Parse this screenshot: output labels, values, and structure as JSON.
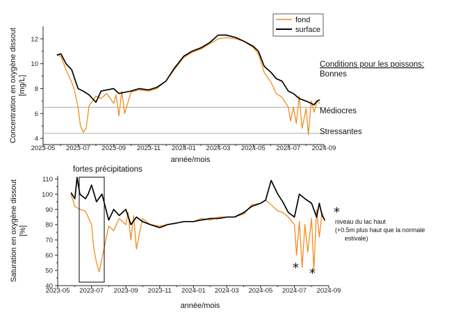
{
  "colors": {
    "fond": "#f08c1e",
    "surface": "#000000",
    "threshold": "#aaaaaa"
  },
  "legend": {
    "fond": "fond",
    "surface": "surface"
  },
  "conditions": {
    "title": "Conditions pour les poissons:",
    "good": "Bonnes",
    "mediocre": "Médiocres",
    "stress": "Stressantes"
  },
  "annotations": {
    "heavy_rain": "fortes précipitations",
    "star": "*",
    "high_lake_line1": "niveau du lac haut",
    "high_lake_line2": "(+0.5m plus haut que la normale",
    "high_lake_line3": "estivale)"
  },
  "chart_data": [
    {
      "type": "line",
      "xlabel": "année/mois",
      "ylabel_line1": "Concentration en oxygène dissout",
      "ylabel_line2": "[mg/L]",
      "xlim": [
        "2023-05",
        "2024-09"
      ],
      "ylim": [
        3.5,
        13
      ],
      "xticks": [
        "2023-05",
        "2023-07",
        "2023-09",
        "2023-11",
        "2024-01",
        "2024-03",
        "2024-05",
        "2024-07",
        "2024-09"
      ],
      "yticks": [
        4,
        6,
        8,
        10,
        12
      ],
      "grid": false,
      "legend_position": "top-right",
      "thresholds": [
        6.5,
        4.4
      ],
      "series": [
        {
          "name": "fond",
          "x": [
            "2023-05-25",
            "2023-06-01",
            "2023-06-10",
            "2023-06-20",
            "2023-06-25",
            "2023-07-01",
            "2023-07-05",
            "2023-07-10",
            "2023-07-15",
            "2023-07-20",
            "2023-08-01",
            "2023-08-10",
            "2023-08-20",
            "2023-09-01",
            "2023-09-05",
            "2023-09-10",
            "2023-09-15",
            "2023-09-20",
            "2023-10-01",
            "2023-10-15",
            "2023-11-01",
            "2023-11-15",
            "2023-12-01",
            "2023-12-15",
            "2024-01-01",
            "2024-01-15",
            "2024-02-01",
            "2024-02-15",
            "2024-03-01",
            "2024-03-15",
            "2024-04-01",
            "2024-04-15",
            "2024-05-01",
            "2024-05-10",
            "2024-05-20",
            "2024-06-01",
            "2024-06-10",
            "2024-06-20",
            "2024-07-01",
            "2024-07-05",
            "2024-07-10",
            "2024-07-15",
            "2024-07-20",
            "2024-07-25",
            "2024-08-01",
            "2024-08-05",
            "2024-08-10",
            "2024-08-15",
            "2024-08-20",
            "2024-08-25"
          ],
          "y": [
            10.7,
            10.6,
            9.5,
            8.5,
            7.8,
            6.5,
            5.0,
            4.5,
            4.8,
            6.6,
            7.4,
            7.2,
            7.6,
            6.8,
            7.5,
            5.8,
            7.8,
            6.0,
            7.7,
            7.9,
            7.8,
            8.0,
            8.6,
            9.5,
            10.5,
            10.9,
            11.2,
            11.6,
            12.0,
            12.1,
            12.0,
            11.8,
            11.3,
            10.8,
            9.3,
            8.5,
            7.6,
            7.3,
            6.5,
            5.4,
            6.5,
            5.2,
            7.4,
            4.8,
            6.4,
            4.3,
            7.0,
            6.1,
            7.0,
            6.8
          ]
        },
        {
          "name": "surface",
          "x": [
            "2023-05-25",
            "2023-06-01",
            "2023-06-10",
            "2023-06-20",
            "2023-06-25",
            "2023-07-01",
            "2023-07-10",
            "2023-07-20",
            "2023-08-01",
            "2023-08-10",
            "2023-08-20",
            "2023-09-01",
            "2023-09-10",
            "2023-09-20",
            "2023-10-01",
            "2023-10-15",
            "2023-11-01",
            "2023-11-15",
            "2023-12-01",
            "2023-12-15",
            "2024-01-01",
            "2024-01-15",
            "2024-02-01",
            "2024-02-15",
            "2024-03-01",
            "2024-03-15",
            "2024-04-01",
            "2024-04-15",
            "2024-05-01",
            "2024-05-10",
            "2024-05-20",
            "2024-06-01",
            "2024-06-10",
            "2024-06-20",
            "2024-07-01",
            "2024-07-10",
            "2024-07-20",
            "2024-08-01",
            "2024-08-10",
            "2024-08-15",
            "2024-08-20",
            "2024-08-25"
          ],
          "y": [
            10.7,
            10.8,
            10.0,
            9.5,
            8.8,
            8.0,
            7.8,
            7.5,
            6.9,
            7.8,
            7.9,
            8.0,
            7.6,
            7.7,
            7.8,
            8.0,
            7.9,
            8.1,
            8.6,
            9.6,
            10.6,
            11.0,
            11.3,
            11.7,
            12.3,
            12.3,
            12.1,
            11.8,
            11.4,
            11.0,
            9.8,
            9.3,
            8.8,
            8.6,
            7.8,
            7.6,
            7.2,
            7.0,
            6.8,
            6.7,
            7.0,
            7.1
          ]
        }
      ]
    },
    {
      "type": "line",
      "xlabel": "année/mois",
      "ylabel_line1": "Saturation en oxygène dissout",
      "ylabel_line2": "[%]",
      "xlim": [
        "2023-05",
        "2024-09"
      ],
      "ylim": [
        40,
        112
      ],
      "xticks": [
        "2023-05",
        "2023-07",
        "2023-09",
        "2023-11",
        "2024-01",
        "2024-03",
        "2024-05",
        "2024-07",
        "2024-09"
      ],
      "yticks": [
        40,
        50,
        60,
        70,
        80,
        90,
        100,
        110
      ],
      "grid": false,
      "series": [
        {
          "name": "fond",
          "x": [
            "2023-05-25",
            "2023-06-01",
            "2023-06-10",
            "2023-06-20",
            "2023-06-25",
            "2023-07-01",
            "2023-07-05",
            "2023-07-10",
            "2023-07-15",
            "2023-07-20",
            "2023-08-01",
            "2023-08-10",
            "2023-08-20",
            "2023-09-01",
            "2023-09-05",
            "2023-09-10",
            "2023-09-15",
            "2023-09-20",
            "2023-10-01",
            "2023-10-15",
            "2023-11-01",
            "2023-11-15",
            "2023-12-01",
            "2023-12-15",
            "2024-01-01",
            "2024-01-15",
            "2024-02-01",
            "2024-02-15",
            "2024-03-01",
            "2024-03-15",
            "2024-04-01",
            "2024-04-15",
            "2024-05-01",
            "2024-05-10",
            "2024-05-20",
            "2024-06-01",
            "2024-06-10",
            "2024-06-20",
            "2024-07-01",
            "2024-07-05",
            "2024-07-10",
            "2024-07-15",
            "2024-07-20",
            "2024-07-25",
            "2024-08-01",
            "2024-08-05",
            "2024-08-10",
            "2024-08-15",
            "2024-08-20",
            "2024-08-25"
          ],
          "y": [
            100,
            92,
            90,
            89,
            85,
            80,
            65,
            55,
            49,
            58,
            79,
            76,
            84,
            80,
            88,
            70,
            86,
            64,
            84,
            80,
            79,
            80,
            81,
            82,
            82,
            84,
            83,
            85,
            85,
            85,
            87,
            93,
            94,
            96,
            93,
            89,
            88,
            85,
            80,
            60,
            82,
            52,
            80,
            62,
            84,
            50,
            90,
            72,
            88,
            82
          ]
        },
        {
          "name": "surface",
          "x": [
            "2023-05-25",
            "2023-06-01",
            "2023-06-05",
            "2023-06-10",
            "2023-06-20",
            "2023-06-25",
            "2023-07-01",
            "2023-07-10",
            "2023-07-20",
            "2023-08-01",
            "2023-08-10",
            "2023-08-20",
            "2023-09-01",
            "2023-09-10",
            "2023-09-20",
            "2023-10-01",
            "2023-10-15",
            "2023-11-01",
            "2023-11-15",
            "2023-12-01",
            "2023-12-15",
            "2024-01-01",
            "2024-01-15",
            "2024-02-01",
            "2024-02-15",
            "2024-03-01",
            "2024-03-15",
            "2024-04-01",
            "2024-04-15",
            "2024-05-01",
            "2024-05-10",
            "2024-05-20",
            "2024-06-01",
            "2024-06-10",
            "2024-06-20",
            "2024-07-01",
            "2024-07-10",
            "2024-07-20",
            "2024-08-01",
            "2024-08-10",
            "2024-08-15",
            "2024-08-20",
            "2024-08-25"
          ],
          "y": [
            101,
            97,
            111,
            100,
            97,
            100,
            106,
            95,
            100,
            83,
            90,
            86,
            90,
            80,
            85,
            82,
            80,
            78,
            80,
            81,
            82,
            82,
            83,
            84,
            84,
            85,
            85,
            88,
            92,
            94,
            96,
            109,
            100,
            95,
            88,
            85,
            100,
            97,
            94,
            85,
            94,
            86,
            83
          ]
        }
      ]
    }
  ]
}
